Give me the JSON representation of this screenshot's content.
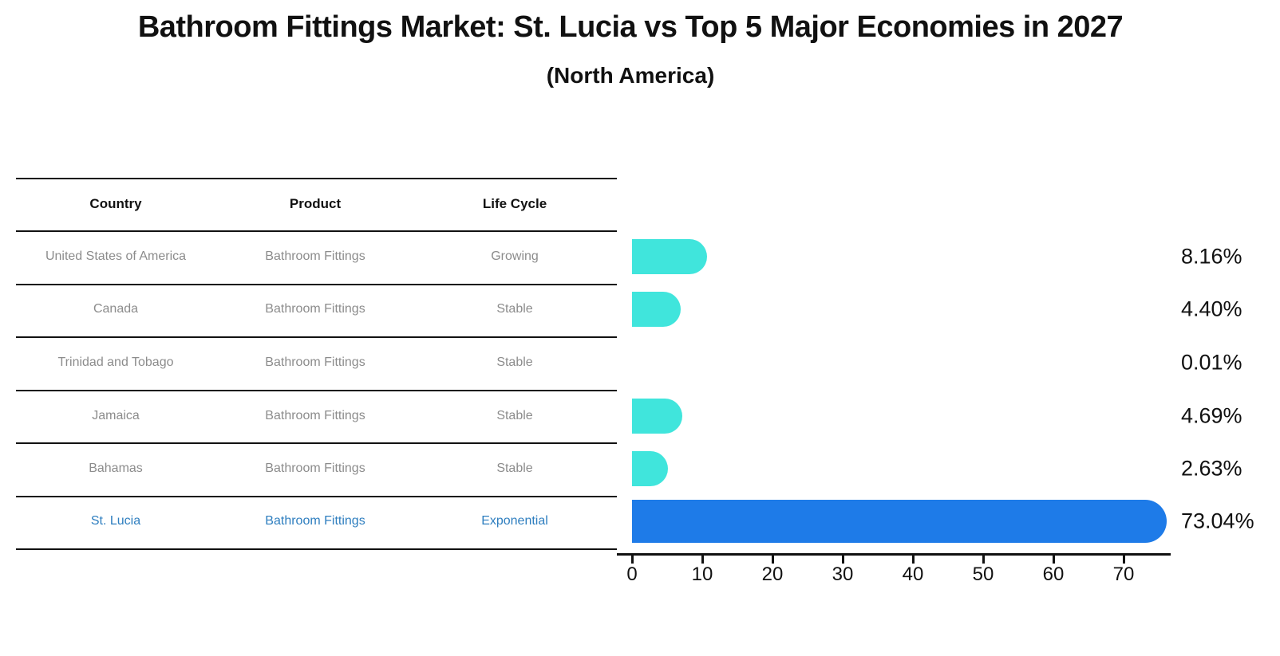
{
  "title": "Bathroom Fittings Market: St. Lucia vs Top 5 Major Economies in 2027",
  "subtitle": "(North America)",
  "table": {
    "headers": [
      "Country",
      "Product",
      "Life Cycle"
    ],
    "rows": [
      {
        "country": "United States of America",
        "product": "Bathroom Fittings",
        "life_cycle": "Growing"
      },
      {
        "country": "Canada",
        "product": "Bathroom Fittings",
        "life_cycle": "Stable"
      },
      {
        "country": "Trinidad and Tobago",
        "product": "Bathroom Fittings",
        "life_cycle": "Stable"
      },
      {
        "country": "Jamaica",
        "product": "Bathroom Fittings",
        "life_cycle": "Stable"
      },
      {
        "country": "Bahamas",
        "product": "Bathroom Fittings",
        "life_cycle": "Stable"
      },
      {
        "country": "St. Lucia",
        "product": "Bathroom Fittings",
        "life_cycle": "Exponential"
      }
    ]
  },
  "chart_data": {
    "type": "bar",
    "orientation": "horizontal",
    "title": "Bathroom Fittings Market: St. Lucia vs Top 5 Major Economies in 2027",
    "subtitle": "(North America)",
    "categories": [
      "United States of America",
      "Canada",
      "Trinidad and Tobago",
      "Jamaica",
      "Bahamas",
      "St. Lucia"
    ],
    "values": [
      8.16,
      4.4,
      0.01,
      4.69,
      2.63,
      73.04
    ],
    "labels": [
      "8.16%",
      "4.40%",
      "0.01%",
      "4.69%",
      "2.63%",
      "73.04%"
    ],
    "unit": "%",
    "xticks": [
      0,
      10,
      20,
      30,
      40,
      50,
      60,
      70
    ],
    "xlim": [
      0,
      76
    ],
    "grid": false,
    "legend": "none",
    "value_label_position": "right",
    "bar_color": "#40E5DC",
    "highlight_color": "#1E7BE8",
    "highlight_index": 5
  },
  "colors": {
    "background": "#ffffff",
    "text_primary": "#111111",
    "text_muted": "#8c8c8c",
    "text_highlight": "#2e7ebf",
    "axis": "#111111"
  }
}
